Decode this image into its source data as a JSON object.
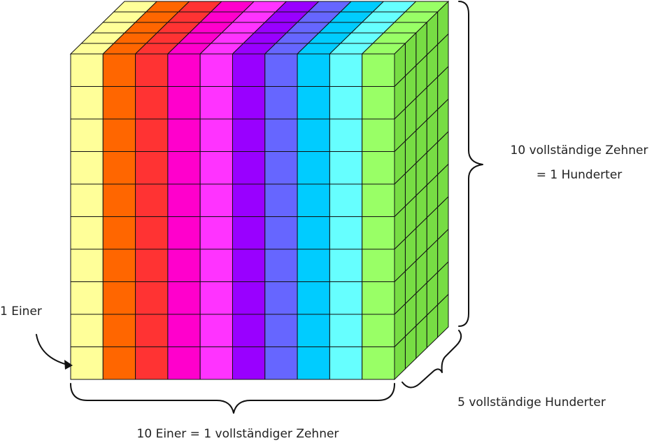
{
  "labels": {
    "one_unit": "1 Einer",
    "bottom": "10 Einer = 1 vollständiger Zehner",
    "right_line1": "10 vollständige Zehner",
    "right_line2": "= 1 Hunderter",
    "depth": "5 vollständige Hunderter"
  }
}
